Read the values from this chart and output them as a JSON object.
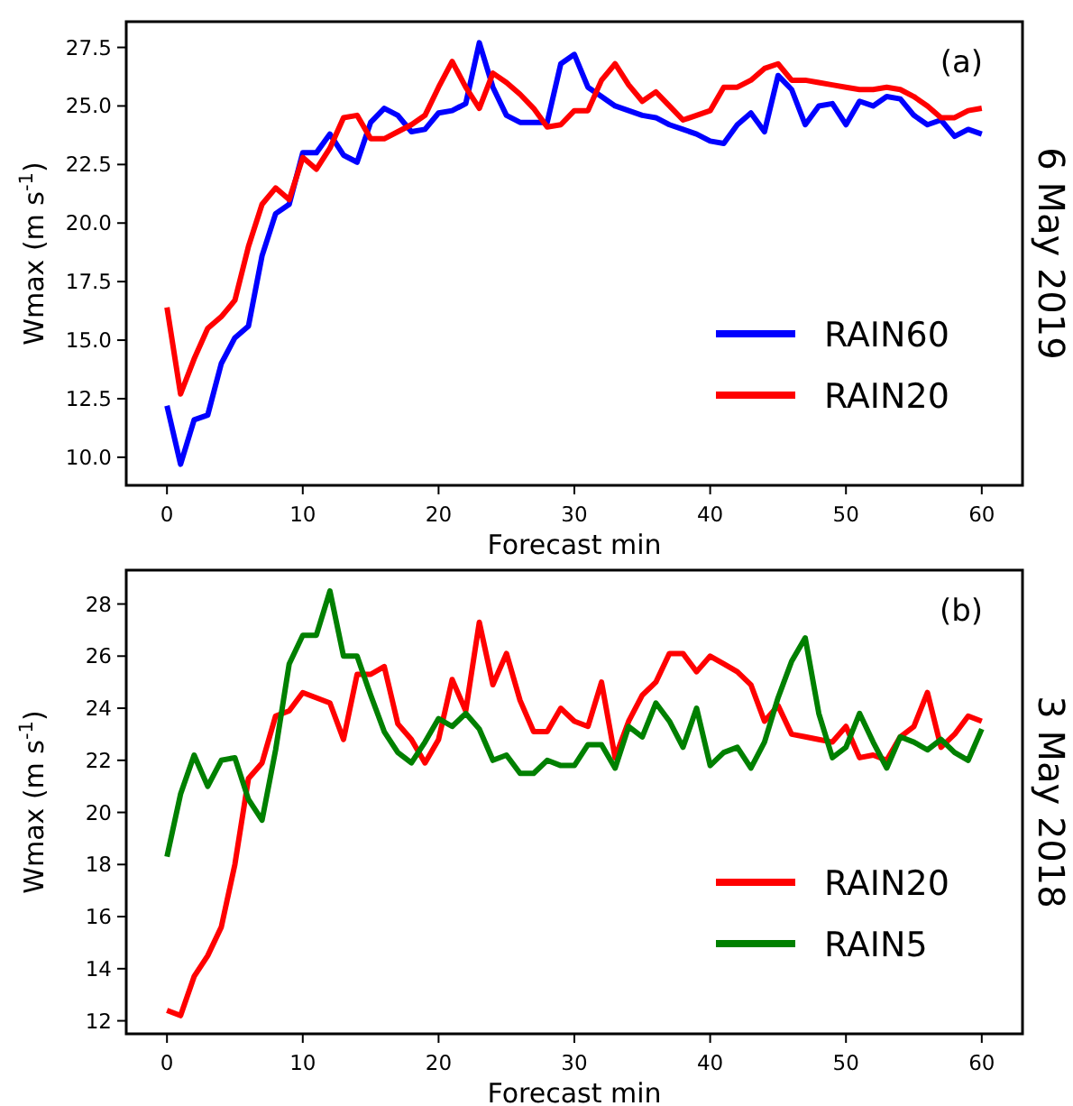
{
  "chart_data": [
    {
      "type": "line",
      "annotations": [
        "(a)",
        "6 May 2019"
      ],
      "xlabel": "Forecast min",
      "ylabel": "Wmax (m s$^{-1}$)",
      "x": [
        0,
        1,
        2,
        3,
        4,
        5,
        6,
        7,
        8,
        9,
        10,
        11,
        12,
        13,
        14,
        15,
        16,
        17,
        18,
        19,
        20,
        21,
        22,
        23,
        24,
        25,
        26,
        27,
        28,
        29,
        30,
        31,
        32,
        33,
        34,
        35,
        36,
        37,
        38,
        39,
        40,
        41,
        42,
        43,
        44,
        45,
        46,
        47,
        48,
        49,
        50,
        51,
        52,
        53,
        54,
        55,
        56,
        57,
        58,
        59,
        60
      ],
      "xlim": [
        -3,
        63
      ],
      "xticks": [
        0,
        10,
        20,
        30,
        40,
        50,
        60
      ],
      "ylim": [
        8.8,
        28.6
      ],
      "yticks": [
        {
          "value": 10,
          "label": "10.0"
        },
        {
          "value": 12.5,
          "label": "12.5"
        },
        {
          "value": 15,
          "label": "15.0"
        },
        {
          "value": 17.5,
          "label": "17.5"
        },
        {
          "value": 20,
          "label": "20.0"
        },
        {
          "value": 22.5,
          "label": "22.5"
        },
        {
          "value": 25,
          "label": "25.0"
        },
        {
          "value": 27.5,
          "label": "27.5"
        }
      ],
      "legend": "bottom right",
      "grid": false,
      "series": [
        {
          "name": "RAIN60",
          "color": "#0000ff",
          "values": [
            12.2,
            9.7,
            11.6,
            11.8,
            14.0,
            15.1,
            15.6,
            18.6,
            20.4,
            20.8,
            23.0,
            23.0,
            23.8,
            22.9,
            22.6,
            24.3,
            24.9,
            24.6,
            23.9,
            24.0,
            24.7,
            24.8,
            25.1,
            27.7,
            25.8,
            24.6,
            24.3,
            24.3,
            24.3,
            26.8,
            27.2,
            25.8,
            25.4,
            25.0,
            24.8,
            24.6,
            24.5,
            24.2,
            24.0,
            23.8,
            23.5,
            23.4,
            24.2,
            24.7,
            23.9,
            26.3,
            25.7,
            24.2,
            25.0,
            25.1,
            24.2,
            25.2,
            25.0,
            25.4,
            25.3,
            24.6,
            24.2,
            24.4,
            23.7,
            24.0,
            23.8
          ]
        },
        {
          "name": "RAIN20",
          "color": "#ff0000",
          "values": [
            16.4,
            12.7,
            14.2,
            15.5,
            16.0,
            16.7,
            19.0,
            20.8,
            21.5,
            21.0,
            22.8,
            22.3,
            23.2,
            24.5,
            24.6,
            23.6,
            23.6,
            23.9,
            24.2,
            24.6,
            25.8,
            26.9,
            25.8,
            24.9,
            26.4,
            26.0,
            25.5,
            24.9,
            24.1,
            24.2,
            24.8,
            24.8,
            26.1,
            26.8,
            25.9,
            25.2,
            25.6,
            25.0,
            24.4,
            24.6,
            24.8,
            25.8,
            25.8,
            26.1,
            26.6,
            26.8,
            26.1,
            26.1,
            26.0,
            25.9,
            25.8,
            25.7,
            25.7,
            25.8,
            25.7,
            25.4,
            25.0,
            24.5,
            24.5,
            24.8,
            24.9
          ]
        }
      ]
    },
    {
      "type": "line",
      "annotations": [
        "(b)",
        "3 May 2018"
      ],
      "xlabel": "Forecast min",
      "ylabel": "Wmax (m s$^{-1}$)",
      "x": [
        0,
        1,
        2,
        3,
        4,
        5,
        6,
        7,
        8,
        9,
        10,
        11,
        12,
        13,
        14,
        15,
        16,
        17,
        18,
        19,
        20,
        21,
        22,
        23,
        24,
        25,
        26,
        27,
        28,
        29,
        30,
        31,
        32,
        33,
        34,
        35,
        36,
        37,
        38,
        39,
        40,
        41,
        42,
        43,
        44,
        45,
        46,
        47,
        48,
        49,
        50,
        51,
        52,
        53,
        54,
        55,
        56,
        57,
        58,
        59,
        60
      ],
      "xlim": [
        -3,
        63
      ],
      "xticks": [
        0,
        10,
        20,
        30,
        40,
        50,
        60
      ],
      "ylim": [
        11.5,
        29.3
      ],
      "yticks": [
        12,
        14,
        16,
        18,
        20,
        22,
        24,
        26,
        28
      ],
      "legend": "bottom right",
      "grid": false,
      "series": [
        {
          "name": "RAIN20",
          "color": "#ff0000",
          "values": [
            12.4,
            12.2,
            13.7,
            14.5,
            15.6,
            18.0,
            21.3,
            21.9,
            23.7,
            23.9,
            24.6,
            24.4,
            24.2,
            22.8,
            25.3,
            25.3,
            25.6,
            23.4,
            22.8,
            21.9,
            22.8,
            25.1,
            23.9,
            27.3,
            24.9,
            26.1,
            24.3,
            23.1,
            23.1,
            24.0,
            23.5,
            23.3,
            25.0,
            22.1,
            23.5,
            24.5,
            25.0,
            26.1,
            26.1,
            25.4,
            26.0,
            25.7,
            25.4,
            24.9,
            23.5,
            24.1,
            23.0,
            22.9,
            22.8,
            22.7,
            23.3,
            22.1,
            22.2,
            22.0,
            22.9,
            23.3,
            24.6,
            22.5,
            23.0,
            23.7,
            23.5
          ]
        },
        {
          "name": "RAIN5",
          "color": "#008000",
          "values": [
            18.3,
            20.7,
            22.2,
            21.0,
            22.0,
            22.1,
            20.5,
            19.7,
            22.4,
            25.7,
            26.8,
            26.8,
            28.5,
            26.0,
            26.0,
            24.5,
            23.1,
            22.3,
            21.9,
            22.7,
            23.6,
            23.3,
            23.8,
            23.2,
            22.0,
            22.2,
            21.5,
            21.5,
            22.0,
            21.8,
            21.8,
            22.6,
            22.6,
            21.7,
            23.3,
            22.9,
            24.2,
            23.5,
            22.5,
            24.0,
            21.8,
            22.3,
            22.5,
            21.7,
            22.7,
            24.4,
            25.8,
            26.7,
            23.8,
            22.1,
            22.5,
            23.8,
            22.7,
            21.7,
            22.9,
            22.7,
            22.4,
            22.8,
            22.3,
            22.0,
            23.2
          ]
        }
      ]
    }
  ]
}
